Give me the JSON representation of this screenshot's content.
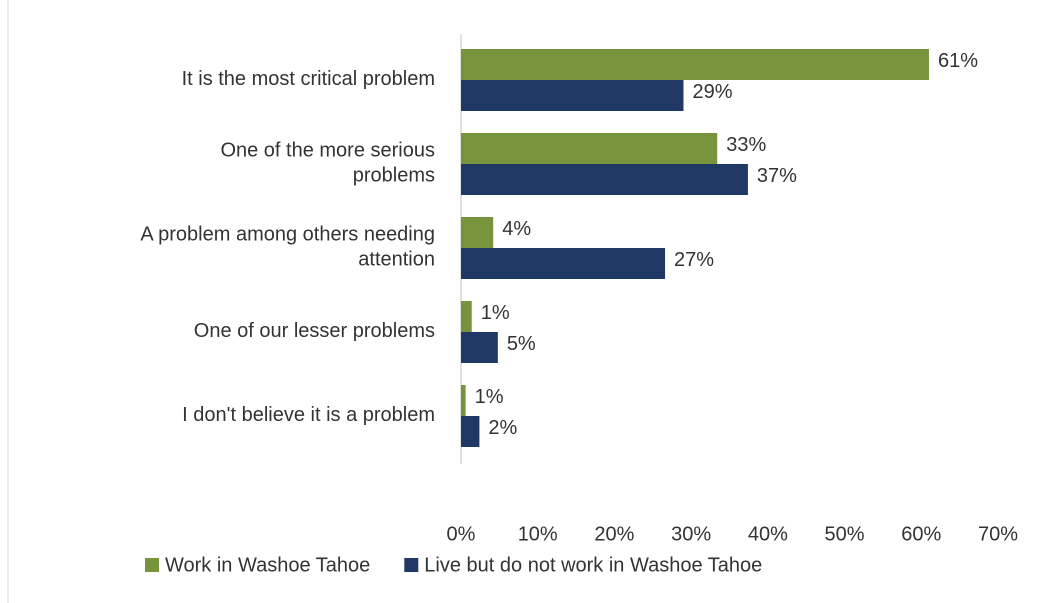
{
  "chart_data": {
    "type": "barh",
    "categories": [
      "It is the most critical problem",
      "One of the more serious problems",
      "A problem among others needing attention",
      "One of our lesser problems",
      "I don't believe it is a problem"
    ],
    "series": [
      {
        "name": "Work in Washoe Tahoe",
        "color": "#77933c",
        "values": [
          61,
          33.4,
          4.2,
          1.4,
          0.6
        ],
        "value_labels": [
          "61%",
          "33%",
          "4%",
          "1%",
          "1%"
        ]
      },
      {
        "name": "Live but do not work in Washoe Tahoe",
        "color": "#1f3864",
        "values": [
          29,
          37.4,
          26.6,
          4.8,
          2.4
        ],
        "value_labels": [
          "29%",
          "37%",
          "27%",
          "5%",
          "2%"
        ]
      }
    ],
    "xlim": [
      0,
      70
    ],
    "xticks": [
      {
        "value": 0,
        "label": "0%"
      },
      {
        "value": 10,
        "label": "10%"
      },
      {
        "value": 20,
        "label": "20%"
      },
      {
        "value": 30,
        "label": "30%"
      },
      {
        "value": 40,
        "label": "40%"
      },
      {
        "value": 50,
        "label": "50%"
      },
      {
        "value": 60,
        "label": "60%"
      },
      {
        "value": 70,
        "label": "70%"
      }
    ],
    "grid": false,
    "legend": "bottom"
  }
}
